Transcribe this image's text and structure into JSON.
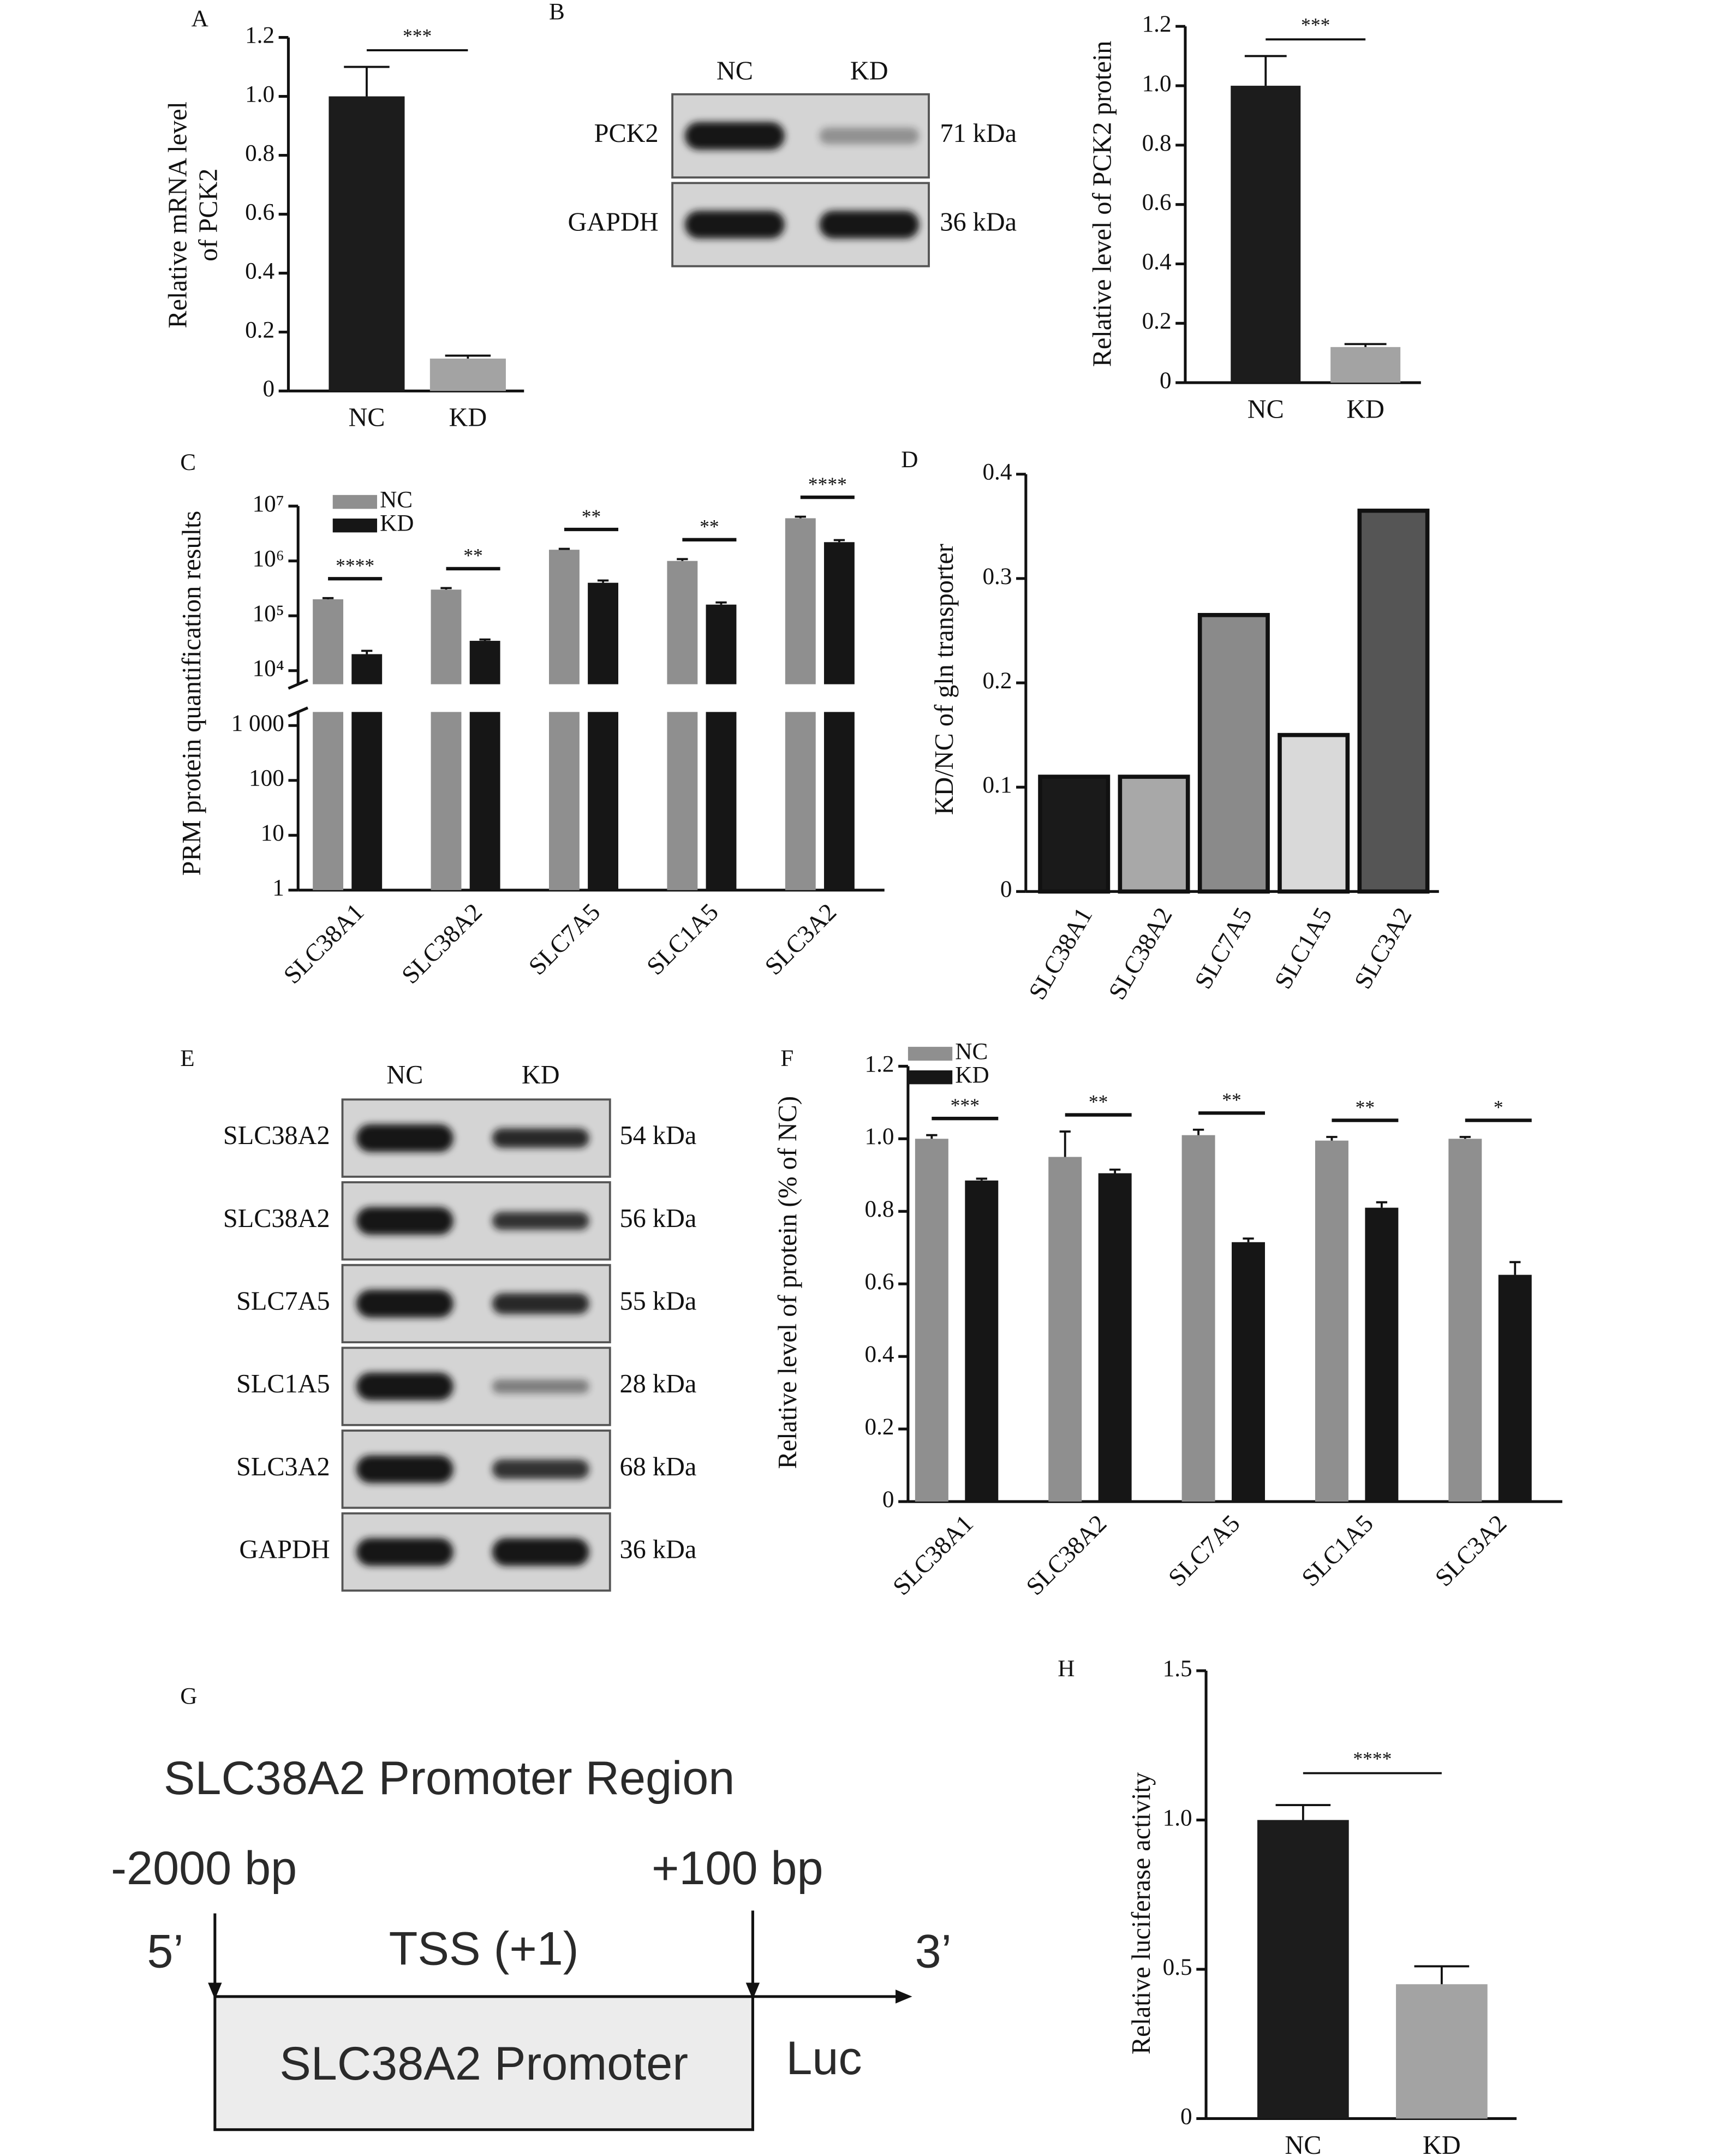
{
  "panel_labels": [
    "A",
    "B",
    "C",
    "D",
    "E",
    "F",
    "G",
    "H"
  ],
  "chart_data": [
    {
      "type": "bar",
      "y_label": [
        "Relative mRNA level",
        "of PCK2"
      ],
      "categories": [
        "NC",
        "KD"
      ],
      "values": [
        1.0,
        0.11
      ],
      "errors": [
        0.1,
        0.01
      ],
      "colors": [
        "#1c1c1c",
        "#a3a3a3"
      ],
      "ylim": [
        0,
        1.2
      ],
      "yticks": [
        0,
        0.2,
        0.4,
        0.6,
        0.8,
        {
          "value": 1,
          "label": "1.0"
        },
        1.2
      ],
      "significance": "***"
    },
    {
      "type": "bar",
      "y_label": "Relative level of PCK2 protein",
      "categories": [
        "NC",
        "KD"
      ],
      "values": [
        1.0,
        0.12
      ],
      "errors": [
        0.1,
        0.01
      ],
      "colors": [
        "#1c1c1c",
        "#a3a3a3"
      ],
      "ylim": [
        0,
        1.2
      ],
      "yticks": [
        0,
        0.2,
        0.4,
        0.6,
        0.8,
        {
          "value": 1,
          "label": "1.0"
        },
        1.2
      ],
      "significance": "***"
    },
    {
      "type": "bar",
      "log_scale": true,
      "axis_break": true,
      "y_label": "PRM protein quantification results",
      "categories": [
        "SLC38A1",
        "SLC38A2",
        "SLC7A5",
        "SLC1A5",
        "SLC3A2"
      ],
      "series": [
        {
          "name": "NC",
          "color": "#8f8f8f",
          "values": [
            200000,
            300000,
            1600000,
            1000000,
            6000000
          ],
          "errors": [
            10000,
            20000,
            60000,
            80000,
            400000
          ]
        },
        {
          "name": "KD",
          "color": "#161616",
          "values": [
            20000,
            35000,
            400000,
            160000,
            2200000
          ],
          "errors": [
            3000,
            2000,
            40000,
            15000,
            200000
          ]
        }
      ],
      "ylim": [
        1,
        10000000
      ],
      "yticks": [
        1,
        10,
        100,
        {
          "value": 1000,
          "label": "1 000"
        },
        {
          "value": 10000,
          "label": "10⁴"
        },
        {
          "value": 100000,
          "label": "10⁵"
        },
        {
          "value": 1000000,
          "label": "10⁶"
        },
        {
          "value": 10000000,
          "label": "10⁷"
        }
      ],
      "significance": [
        "****",
        "**",
        "**",
        "**",
        "****"
      ]
    },
    {
      "type": "bar",
      "y_label": "KD/NC of gln transporter",
      "categories": [
        "SLC38A1",
        "SLC38A2",
        "SLC7A5",
        "SLC1A5",
        "SLC3A2"
      ],
      "values": [
        0.11,
        0.11,
        0.265,
        0.15,
        0.365
      ],
      "colors": [
        "#1a1a1a",
        "#a8a8a8",
        "#8a8a8a",
        "#d9d9d9",
        "#555555"
      ],
      "ylim": [
        0,
        0.4
      ],
      "yticks": [
        0,
        0.1,
        0.2,
        0.3,
        0.4
      ]
    },
    {
      "type": "bar",
      "y_label": "Relative level of protein (% of NC)",
      "categories": [
        "SLC38A1",
        "SLC38A2",
        "SLC7A5",
        "SLC1A5",
        "SLC3A2"
      ],
      "series": [
        {
          "name": "NC",
          "color": "#8f8f8f",
          "values": [
            1.0,
            0.95,
            1.01,
            0.995,
            1.0
          ],
          "errors": [
            0.01,
            0.07,
            0.015,
            0.01,
            0.005
          ]
        },
        {
          "name": "KD",
          "color": "#161616",
          "values": [
            0.885,
            0.905,
            0.715,
            0.81,
            0.625
          ],
          "errors": [
            0.005,
            0.01,
            0.01,
            0.015,
            0.035
          ]
        }
      ],
      "ylim": [
        0,
        1.2
      ],
      "yticks": [
        0,
        0.2,
        0.4,
        0.6,
        0.8,
        {
          "value": 1,
          "label": "1.0"
        },
        1.2
      ],
      "significance": [
        "***",
        "**",
        "**",
        "**",
        "*"
      ]
    },
    {
      "type": "bar",
      "y_label": "Relative luciferase activity",
      "categories": [
        "NC",
        "KD"
      ],
      "values": [
        1.0,
        0.45
      ],
      "errors": [
        0.05,
        0.06
      ],
      "colors": [
        "#1c1c1c",
        "#a3a3a3"
      ],
      "ylim": [
        0,
        1.5
      ],
      "yticks": [
        0,
        0.5,
        {
          "value": 1,
          "label": "1.0"
        },
        1.5
      ],
      "significance": "****"
    }
  ],
  "blots": [
    {
      "columns": [
        "NC",
        "KD"
      ],
      "rows": [
        {
          "protein": "PCK2",
          "size": "71 kDa"
        },
        {
          "protein": "GAPDH",
          "size": "36 kDa"
        }
      ]
    },
    {
      "columns": [
        "NC",
        "KD"
      ],
      "rows": [
        {
          "protein": "SLC38A2",
          "size": "54 kDa"
        },
        {
          "protein": "SLC38A2",
          "size": "56 kDa"
        },
        {
          "protein": "SLC7A5",
          "size": "55 kDa"
        },
        {
          "protein": "SLC1A5",
          "size": "28 kDa"
        },
        {
          "protein": "SLC3A2",
          "size": "68 kDa"
        },
        {
          "protein": "GAPDH",
          "size": "36 kDa"
        }
      ]
    }
  ],
  "diagram": {
    "title": "SLC38A2 Promoter Region",
    "start": "-2000 bp",
    "end": "+100 bp",
    "five_prime": "5’",
    "tss": "TSS (+1)",
    "three_prime": "3’",
    "promoter": "SLC38A2 Promoter",
    "reporter": "Luc"
  }
}
